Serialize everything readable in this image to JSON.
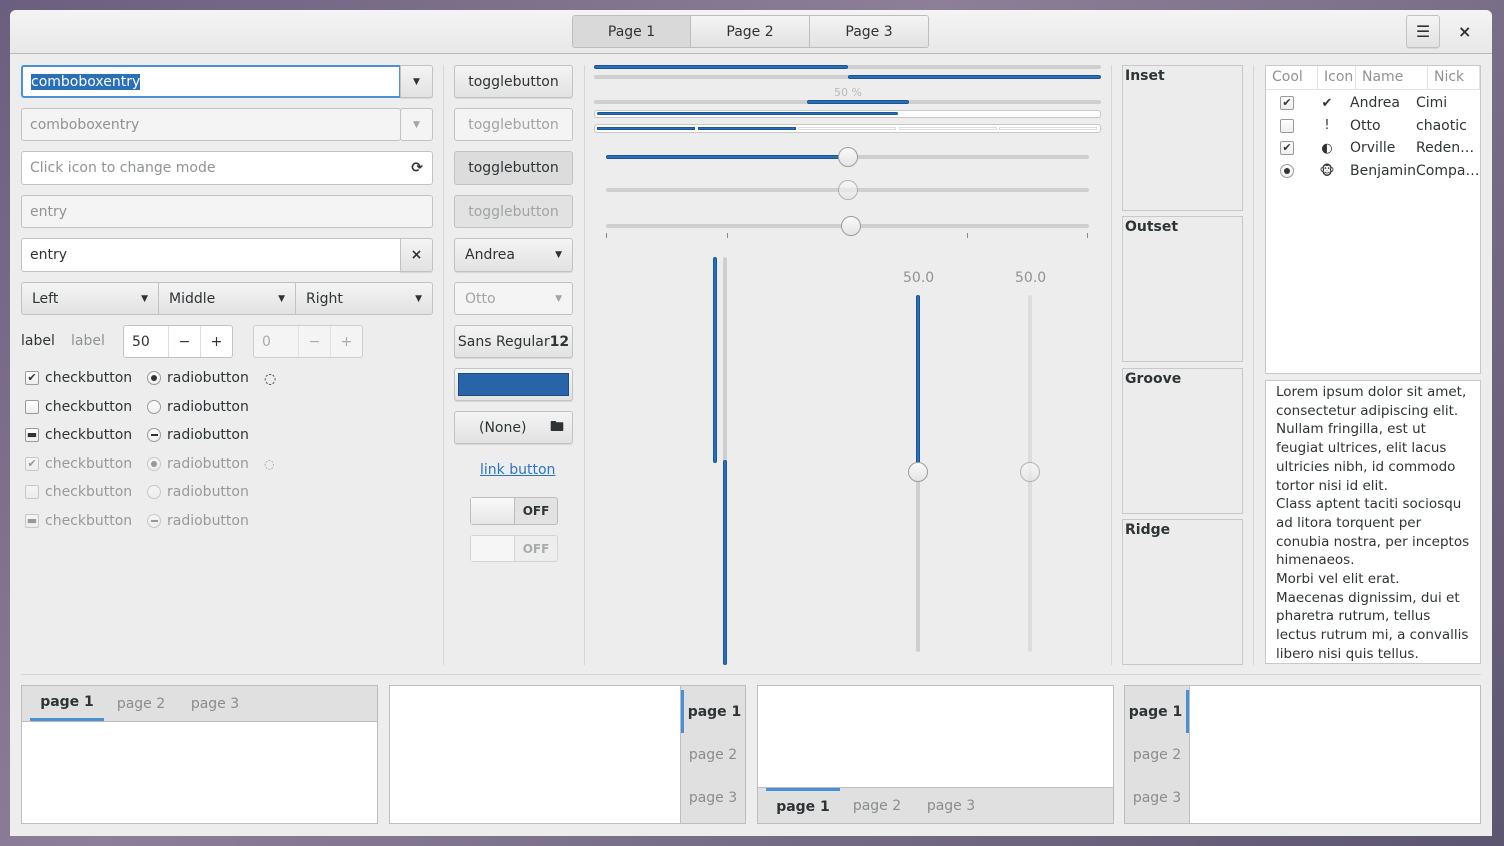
{
  "header": {
    "tabs": [
      "Page 1",
      "Page 2",
      "Page 3"
    ],
    "active_tab": 0,
    "menu_icon": "hamburger-icon",
    "close_icon": "close-icon"
  },
  "col1": {
    "combo1": "comboboxentry",
    "combo2": "comboboxentry",
    "mode_entry_placeholder": "Click icon to change mode",
    "entry_disabled": "entry",
    "entry": "entry",
    "combos": [
      "Left",
      "Middle",
      "Right"
    ],
    "label1": "label",
    "label2": "label",
    "spin1": "50",
    "spin2": "0",
    "minus": "−",
    "plus": "+",
    "checks": [
      {
        "label": "checkbutton",
        "state": "checked",
        "radio": "radiobutton",
        "radio_state": "selected"
      },
      {
        "label": "checkbutton",
        "state": "unchecked",
        "radio": "radiobutton",
        "radio_state": "unselected"
      },
      {
        "label": "checkbutton",
        "state": "mixed",
        "radio": "radiobutton",
        "radio_state": "mixed"
      },
      {
        "label": "checkbutton",
        "state": "checked",
        "radio": "radiobutton",
        "radio_state": "selected",
        "disabled": true
      },
      {
        "label": "checkbutton",
        "state": "unchecked",
        "radio": "radiobutton",
        "radio_state": "unselected",
        "disabled": true
      },
      {
        "label": "checkbutton",
        "state": "mixed",
        "radio": "radiobutton",
        "radio_state": "mixed",
        "disabled": true
      }
    ]
  },
  "col2": {
    "toggles": [
      "togglebutton",
      "togglebutton",
      "togglebutton",
      "togglebutton"
    ],
    "combo_andrea": "Andrea",
    "combo_otto": "Otto",
    "font_name": "Sans Regular",
    "font_size": "12",
    "color": "#2a64a8",
    "file": "(None)",
    "link": "link button",
    "switch1": "OFF",
    "switch2": "OFF"
  },
  "col3": {
    "progress_label": "50 %",
    "progress": [
      0.5,
      0.5,
      0.5,
      0.6,
      0.4
    ],
    "slider_values": [
      0.5,
      0.5,
      0.5
    ],
    "scale_label1": "50.0",
    "scale_label2": "50.0",
    "accent": "#2a6fba"
  },
  "frames": [
    "Inset",
    "Outset",
    "Groove",
    "Ridge"
  ],
  "tree": {
    "columns": [
      "Cool",
      "Icon",
      "Name",
      "Nick"
    ],
    "rows": [
      {
        "cool": "checked",
        "icon": "emblem-default-icon",
        "name": "Andrea",
        "nick": "Cimi"
      },
      {
        "cool": "unchecked",
        "icon": "dialog-warning-icon",
        "name": "Otto",
        "nick": "chaotic"
      },
      {
        "cool": "checked",
        "icon": "moon-icon",
        "name": "Orville",
        "nick": "Reden…"
      },
      {
        "cool": "radio",
        "icon": "monkey-icon",
        "name": "Benjamin",
        "nick": "Compa…"
      }
    ]
  },
  "textview": "Lorem ipsum dolor sit amet, consectetur adipiscing elit. Nullam fringilla, est ut feugiat ultrices, elit lacus ultricies nibh, id commodo tortor nisi id elit.\nClass aptent taciti sociosqu ad litora torquent per conubia nostra, per inceptos himenaeos.\nMorbi vel elit erat. Maecenas dignissim, dui et pharetra rutrum, tellus lectus rutrum mi, a convallis libero nisi quis tellus.",
  "notebooks": [
    [
      "page 1",
      "page 2",
      "page 3"
    ],
    [
      "page 1",
      "page 2",
      "page 3"
    ],
    [
      "page 1",
      "page 2",
      "page 3"
    ],
    [
      "page 1",
      "page 2",
      "page 3"
    ]
  ]
}
